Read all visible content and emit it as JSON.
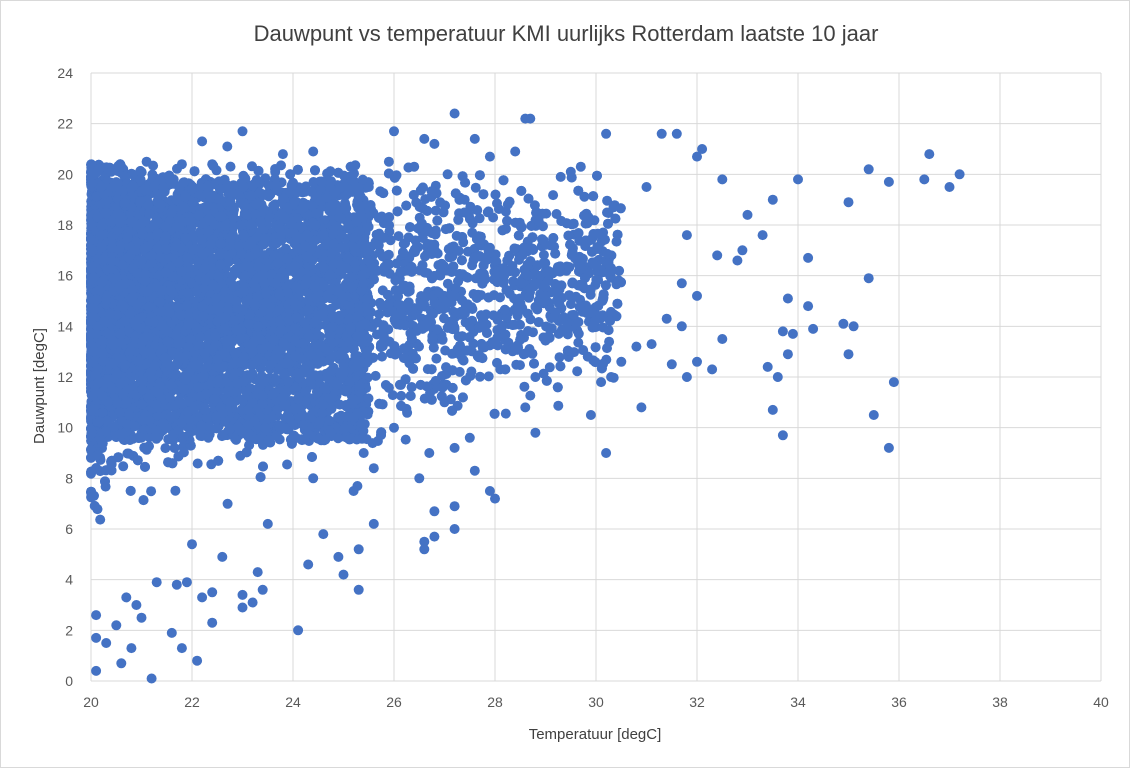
{
  "chart_data": {
    "type": "scatter",
    "title": "Dauwpunt vs temperatuur KMI uurlijks Rotterdam laatste 10 jaar",
    "xlabel": "Temperatuur  [degC]",
    "ylabel": "Dauwpunt  [degC]",
    "xlim": [
      20,
      40
    ],
    "ylim": [
      0,
      24
    ],
    "xticks": [
      20,
      22,
      24,
      26,
      28,
      30,
      32,
      34,
      36,
      38,
      40
    ],
    "yticks": [
      0,
      2,
      4,
      6,
      8,
      10,
      12,
      14,
      16,
      18,
      20,
      22,
      24
    ],
    "grid": true,
    "legend": "none",
    "marker_color": "#4472C4",
    "series": [
      {
        "name": "Dauwpunt",
        "points": [
          [
            37.2,
            20.0
          ],
          [
            37.0,
            19.5
          ],
          [
            36.6,
            20.8
          ],
          [
            36.5,
            19.8
          ],
          [
            35.8,
            19.7
          ],
          [
            35.4,
            20.2
          ],
          [
            35.0,
            18.9
          ],
          [
            35.4,
            15.9
          ],
          [
            34.2,
            16.7
          ],
          [
            33.5,
            19.0
          ],
          [
            34.0,
            19.8
          ],
          [
            33.8,
            15.1
          ],
          [
            34.2,
            14.8
          ],
          [
            34.3,
            13.9
          ],
          [
            33.9,
            13.7
          ],
          [
            33.7,
            13.8
          ],
          [
            33.8,
            12.9
          ],
          [
            33.4,
            12.4
          ],
          [
            33.6,
            12.0
          ],
          [
            34.9,
            14.1
          ],
          [
            35.1,
            14.0
          ],
          [
            35.0,
            12.9
          ],
          [
            35.9,
            11.8
          ],
          [
            35.5,
            10.5
          ],
          [
            35.8,
            9.2
          ],
          [
            33.5,
            10.7
          ],
          [
            33.7,
            9.7
          ],
          [
            32.5,
            19.8
          ],
          [
            32.1,
            21.0
          ],
          [
            32.0,
            20.7
          ],
          [
            31.6,
            21.6
          ],
          [
            31.3,
            21.6
          ],
          [
            31.0,
            19.5
          ],
          [
            31.8,
            17.6
          ],
          [
            32.4,
            16.8
          ],
          [
            32.8,
            16.6
          ],
          [
            33.0,
            18.4
          ],
          [
            32.9,
            17.0
          ],
          [
            33.3,
            17.6
          ],
          [
            32.0,
            15.2
          ],
          [
            31.7,
            15.7
          ],
          [
            31.4,
            14.3
          ],
          [
            31.7,
            14.0
          ],
          [
            32.5,
            13.5
          ],
          [
            32.3,
            12.3
          ],
          [
            31.8,
            12.0
          ],
          [
            32.0,
            12.6
          ],
          [
            31.5,
            12.5
          ],
          [
            31.1,
            13.3
          ],
          [
            30.8,
            13.2
          ],
          [
            30.5,
            12.6
          ],
          [
            30.9,
            10.8
          ],
          [
            30.2,
            9.0
          ],
          [
            29.9,
            10.5
          ],
          [
            30.1,
            11.8
          ],
          [
            30.3,
            12.0
          ],
          [
            30.2,
            21.6
          ],
          [
            29.7,
            20.3
          ],
          [
            29.5,
            20.1
          ],
          [
            29.3,
            19.9
          ],
          [
            29.1,
            17.2
          ],
          [
            29.0,
            15.2
          ],
          [
            28.8,
            12.0
          ],
          [
            28.6,
            10.8
          ],
          [
            28.8,
            9.8
          ],
          [
            28.7,
            22.2
          ],
          [
            28.6,
            22.2
          ],
          [
            28.4,
            20.9
          ],
          [
            27.9,
            20.7
          ],
          [
            27.2,
            22.4
          ],
          [
            27.6,
            21.4
          ],
          [
            27.4,
            19.0
          ],
          [
            27.9,
            17.1
          ],
          [
            27.8,
            15.9
          ],
          [
            27.5,
            14.0
          ],
          [
            27.3,
            12.2
          ],
          [
            27.0,
            11.0
          ],
          [
            27.2,
            9.2
          ],
          [
            27.5,
            9.6
          ],
          [
            27.9,
            7.5
          ],
          [
            28.0,
            7.2
          ],
          [
            27.6,
            8.3
          ],
          [
            27.2,
            6.9
          ],
          [
            27.2,
            6.0
          ],
          [
            26.8,
            6.7
          ],
          [
            26.6,
            5.5
          ],
          [
            26.6,
            5.2
          ],
          [
            26.8,
            5.7
          ],
          [
            26.5,
            8.0
          ],
          [
            26.7,
            9.0
          ],
          [
            26.0,
            21.7
          ],
          [
            26.6,
            21.4
          ],
          [
            26.8,
            21.2
          ],
          [
            26.4,
            20.3
          ],
          [
            25.9,
            20.5
          ],
          [
            25.5,
            19.5
          ],
          [
            25.7,
            17.2
          ],
          [
            25.4,
            15.7
          ],
          [
            25.8,
            13.6
          ],
          [
            26.0,
            10.0
          ],
          [
            25.4,
            9.0
          ],
          [
            25.6,
            8.4
          ],
          [
            25.2,
            7.5
          ],
          [
            25.6,
            6.2
          ],
          [
            25.3,
            5.2
          ],
          [
            25.0,
            4.2
          ],
          [
            25.3,
            3.6
          ],
          [
            24.9,
            4.9
          ],
          [
            24.6,
            5.8
          ],
          [
            24.3,
            4.6
          ],
          [
            24.1,
            2.0
          ],
          [
            24.4,
            8.0
          ],
          [
            24.6,
            10.9
          ],
          [
            24.4,
            20.9
          ],
          [
            23.8,
            20.8
          ],
          [
            23.7,
            16.5
          ],
          [
            23.8,
            11.2
          ],
          [
            23.5,
            6.2
          ],
          [
            23.3,
            4.3
          ],
          [
            23.2,
            3.1
          ],
          [
            23.4,
            3.6
          ],
          [
            23.0,
            3.4
          ],
          [
            22.4,
            2.3
          ],
          [
            22.1,
            0.8
          ],
          [
            21.8,
            1.3
          ],
          [
            21.6,
            1.9
          ],
          [
            21.2,
            0.1
          ],
          [
            21.0,
            2.5
          ],
          [
            20.8,
            1.3
          ],
          [
            20.6,
            0.7
          ],
          [
            20.1,
            0.4
          ],
          [
            20.1,
            1.7
          ],
          [
            20.1,
            2.6
          ],
          [
            20.3,
            1.5
          ],
          [
            20.5,
            2.2
          ],
          [
            20.7,
            3.3
          ],
          [
            20.9,
            3.0
          ],
          [
            21.3,
            3.9
          ],
          [
            21.7,
            3.8
          ],
          [
            21.9,
            3.9
          ],
          [
            22.0,
            5.4
          ],
          [
            22.2,
            3.3
          ],
          [
            22.4,
            3.5
          ],
          [
            22.6,
            4.9
          ],
          [
            23.0,
            2.9
          ],
          [
            22.7,
            21.1
          ],
          [
            22.2,
            21.3
          ],
          [
            23.0,
            21.7
          ],
          [
            22.4,
            20.4
          ],
          [
            21.8,
            20.4
          ],
          [
            21.1,
            20.5
          ],
          [
            20.6,
            20.3
          ],
          [
            20.4,
            20.1
          ],
          [
            20.2,
            19.5
          ]
        ]
      }
    ]
  }
}
